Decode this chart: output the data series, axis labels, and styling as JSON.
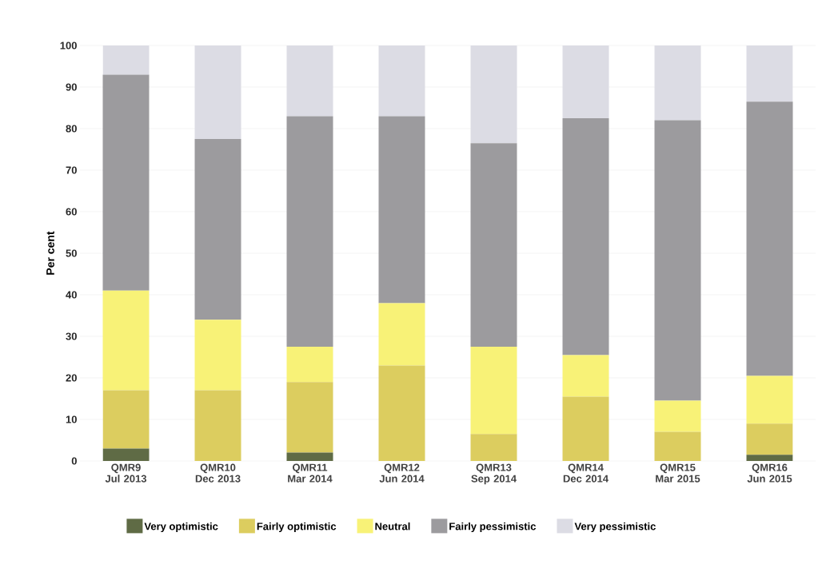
{
  "chart_data": {
    "type": "bar",
    "stacked": true,
    "ylabel": "Per cent",
    "categories": [
      "QMR9 Jul 2013",
      "QMR10 Dec 2013",
      "QMR11 Mar 2014",
      "QMR12 Jun 2014",
      "QMR13 Sep 2014",
      "QMR14 Dec 2014",
      "QMR15 Mar 2015",
      "QMR16 Jun 2015"
    ],
    "series": [
      {
        "name": "Very optimistic",
        "color": "#5f6b45",
        "values": [
          3,
          0,
          2,
          0,
          0,
          0,
          0,
          1.5
        ]
      },
      {
        "name": "Fairly optimistic",
        "color": "#dccd5f",
        "values": [
          14,
          17,
          17,
          23,
          6.5,
          15.5,
          7,
          7.5
        ]
      },
      {
        "name": "Neutral",
        "color": "#f8f277",
        "values": [
          24,
          17,
          8.5,
          15,
          21,
          10,
          7.5,
          11.5
        ]
      },
      {
        "name": "Fairly pessimistic",
        "color": "#9c9b9e",
        "values": [
          52,
          43.5,
          55.5,
          45,
          49,
          57,
          67.5,
          66
        ]
      },
      {
        "name": "Very pessimistic",
        "color": "#dcdce4",
        "values": [
          7,
          22.5,
          17,
          17,
          23.5,
          17.5,
          18,
          13.5
        ]
      }
    ],
    "ylim": [
      0,
      100
    ],
    "yticks": [
      0,
      10,
      20,
      30,
      40,
      50,
      60,
      70,
      80,
      90,
      100
    ],
    "grid": "y",
    "legend": "bottom"
  }
}
